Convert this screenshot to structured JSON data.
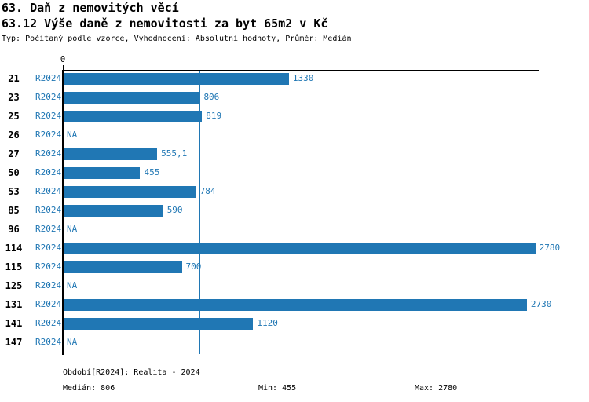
{
  "header": {
    "title": "63. Daň z nemovitých věcí",
    "subtitle": "63.12 Výše daně z nemovitosti za byt 65m2 v Kč",
    "meta": "Typ: Počítaný podle vzorce, Vyhodnocení: Absolutní hodnoty, Průměr: Medián"
  },
  "colors": {
    "accent_blue": "#2077b4",
    "axis_black": "#000000"
  },
  "chart_data": {
    "type": "bar",
    "orientation": "horizontal",
    "title": "63.12 Výše daně z nemovitosti za byt 65m2 v Kč",
    "categories": [
      "21",
      "23",
      "25",
      "26",
      "27",
      "50",
      "53",
      "85",
      "96",
      "114",
      "115",
      "125",
      "131",
      "141",
      "147"
    ],
    "series": [
      {
        "name": "R2024",
        "values": [
          1330,
          806,
          819,
          null,
          555.1,
          455,
          784,
          590,
          null,
          2780,
          700,
          null,
          2730,
          1120,
          null
        ]
      }
    ],
    "value_labels": [
      "1330",
      "806",
      "819",
      "NA",
      "555,1",
      "455",
      "784",
      "590",
      "NA",
      "2780",
      "700",
      "NA",
      "2730",
      "1120",
      "NA"
    ],
    "na_label": "NA",
    "zero_tick_label": "0",
    "xlim": [
      0,
      2800
    ],
    "median_line_value": 806,
    "bar_color": "#2077b4",
    "grid": false,
    "legend": "none",
    "stats": {
      "median": 806,
      "min": 455,
      "max": 2780
    }
  },
  "footer": {
    "period": "Období[R2024]: Realita - 2024",
    "median": "Medián: 806",
    "min": "Min: 455",
    "max": "Max: 2780"
  }
}
